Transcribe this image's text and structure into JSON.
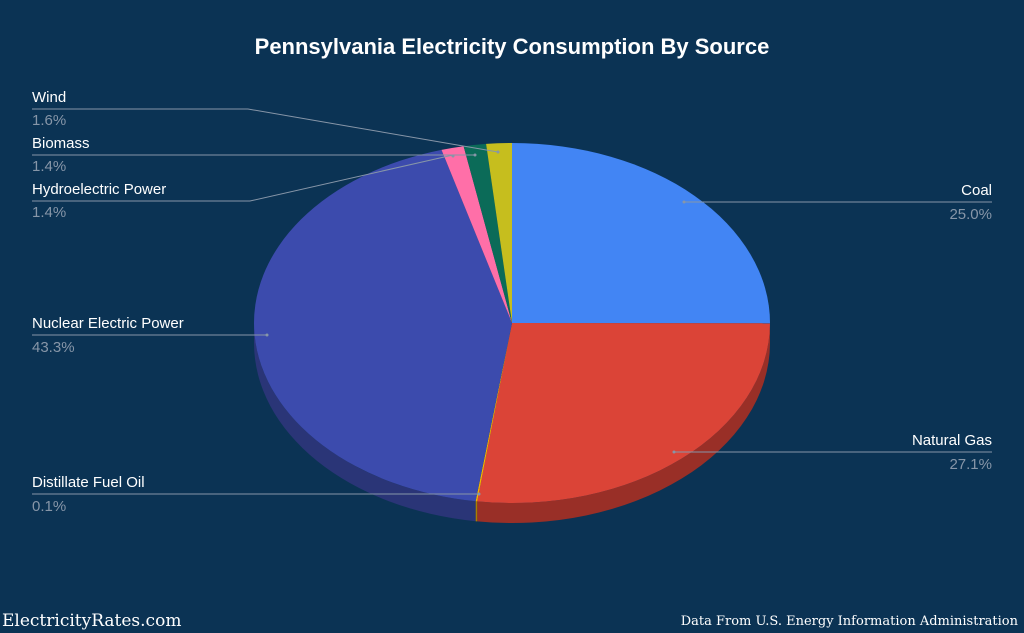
{
  "chart_data": {
    "type": "pie",
    "title": "Pennsylvania Electricity Consumption By Source",
    "three_d": true,
    "start_angle_deg": 0,
    "direction": "clockwise",
    "slices": [
      {
        "label": "Coal",
        "value": 25.0,
        "display": "25.0%",
        "color": "#4285f4",
        "side_color": "#2d5cab"
      },
      {
        "label": "Natural Gas",
        "value": 27.1,
        "display": "27.1%",
        "color": "#db4437",
        "side_color": "#992f27"
      },
      {
        "label": "Distillate Fuel Oil",
        "value": 0.1,
        "display": "0.1%",
        "color": "#f4b400",
        "side_color": "#aa7e00"
      },
      {
        "label": "Nuclear Electric Power",
        "value": 43.3,
        "display": "43.3%",
        "color": "#3c4bad",
        "side_color": "#2a3577"
      },
      {
        "label": "Hydroelectric Power",
        "value": 1.4,
        "display": "1.4%",
        "color": "#ff6fa8",
        "side_color": "#b24e75"
      },
      {
        "label": "Biomass",
        "value": 1.4,
        "display": "1.4%",
        "color": "#0b6b58",
        "side_color": "#074a3d"
      },
      {
        "label": "Wind",
        "value": 1.6,
        "display": "1.6%",
        "color": "#c6be1e",
        "side_color": "#8a8515"
      }
    ],
    "legend_position": "callout-labels"
  },
  "labels": {
    "wind": {
      "name": "Wind",
      "pct": "1.6%"
    },
    "biomass": {
      "name": "Biomass",
      "pct": "1.4%"
    },
    "hydro": {
      "name": "Hydroelectric Power",
      "pct": "1.4%"
    },
    "nuclear": {
      "name": "Nuclear Electric Power",
      "pct": "43.3%"
    },
    "distillate": {
      "name": "Distillate Fuel Oil",
      "pct": "0.1%"
    },
    "coal": {
      "name": "Coal",
      "pct": "25.0%"
    },
    "gas": {
      "name": "Natural Gas",
      "pct": "27.1%"
    }
  },
  "footer": {
    "brand": "ElectricityRates.com",
    "source": "Data From U.S. Energy Information Administration"
  }
}
